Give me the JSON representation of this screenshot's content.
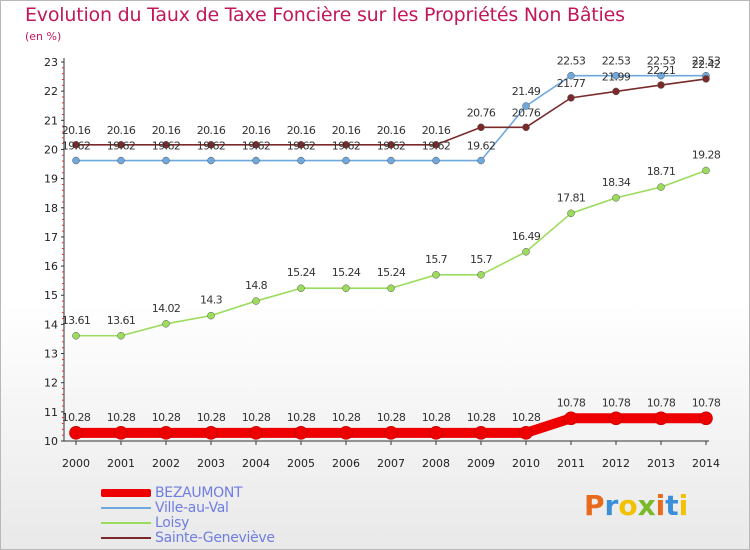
{
  "header": {
    "title": "Evolution du Taux de Taxe Foncière sur les Propriétés Non Bâties",
    "unit": "(en %)"
  },
  "logo": {
    "text": "Proxiti",
    "colors": [
      "#e86a1a",
      "#3b8fd8",
      "#f2c200",
      "#7ab929"
    ]
  },
  "chart_data": {
    "type": "line",
    "x": [
      2000,
      2001,
      2002,
      2003,
      2004,
      2005,
      2006,
      2007,
      2008,
      2009,
      2010,
      2011,
      2012,
      2013,
      2014
    ],
    "ylim": [
      10,
      23
    ],
    "yticks": [
      10,
      11,
      12,
      13,
      14,
      15,
      16,
      17,
      18,
      19,
      20,
      21,
      22,
      23
    ],
    "grid": false,
    "legend_position": "bottom-left",
    "series": [
      {
        "name": "BEZAUMONT",
        "color": "#ee0000",
        "values": [
          10.28,
          10.28,
          10.28,
          10.28,
          10.28,
          10.28,
          10.28,
          10.28,
          10.28,
          10.28,
          10.28,
          10.78,
          10.78,
          10.78,
          10.78
        ],
        "labels": [
          "10.28",
          "10.28",
          "10.28",
          "10.28",
          "10.28",
          "10.28",
          "10.28",
          "10.28",
          "10.28",
          "10.28",
          "10.28",
          "10.78",
          "10.78",
          "10.78",
          "10.78"
        ]
      },
      {
        "name": "Ville-au-Val",
        "color": "#6fa8dc",
        "values": [
          19.62,
          19.62,
          19.62,
          19.62,
          19.62,
          19.62,
          19.62,
          19.62,
          19.62,
          19.62,
          21.49,
          22.53,
          22.53,
          22.53,
          22.53
        ],
        "labels": [
          "19.62",
          "19.62",
          "19.62",
          "19.62",
          "19.62",
          "19.62",
          "19.62",
          "19.62",
          "19.62",
          "19.62",
          "21.49",
          "22.53",
          "22.53",
          "22.53",
          "22.53"
        ]
      },
      {
        "name": "Loisy",
        "color": "#9cdc5c",
        "values": [
          13.61,
          13.61,
          14.02,
          14.3,
          14.8,
          15.24,
          15.24,
          15.24,
          15.7,
          15.7,
          16.49,
          17.81,
          18.34,
          18.71,
          19.28
        ],
        "labels": [
          "13.61",
          "13.61",
          "14.02",
          "14.3",
          "14.8",
          "15.24",
          "15.24",
          "15.24",
          "15.7",
          "15.7",
          "16.49",
          "17.81",
          "18.34",
          "18.71",
          "19.28"
        ]
      },
      {
        "name": "Sainte-Geneviève",
        "color": "#7a2a2a",
        "values": [
          20.16,
          20.16,
          20.16,
          20.16,
          20.16,
          20.16,
          20.16,
          20.16,
          20.16,
          20.76,
          20.76,
          21.77,
          21.99,
          22.21,
          22.42
        ],
        "labels": [
          "20.16",
          "20.16",
          "20.16",
          "20.16",
          "20.16",
          "20.16",
          "20.16",
          "20.16",
          "20.16",
          "20.76",
          "20.76",
          "21.77",
          "21.99",
          "22.21",
          "22.42"
        ]
      }
    ]
  }
}
